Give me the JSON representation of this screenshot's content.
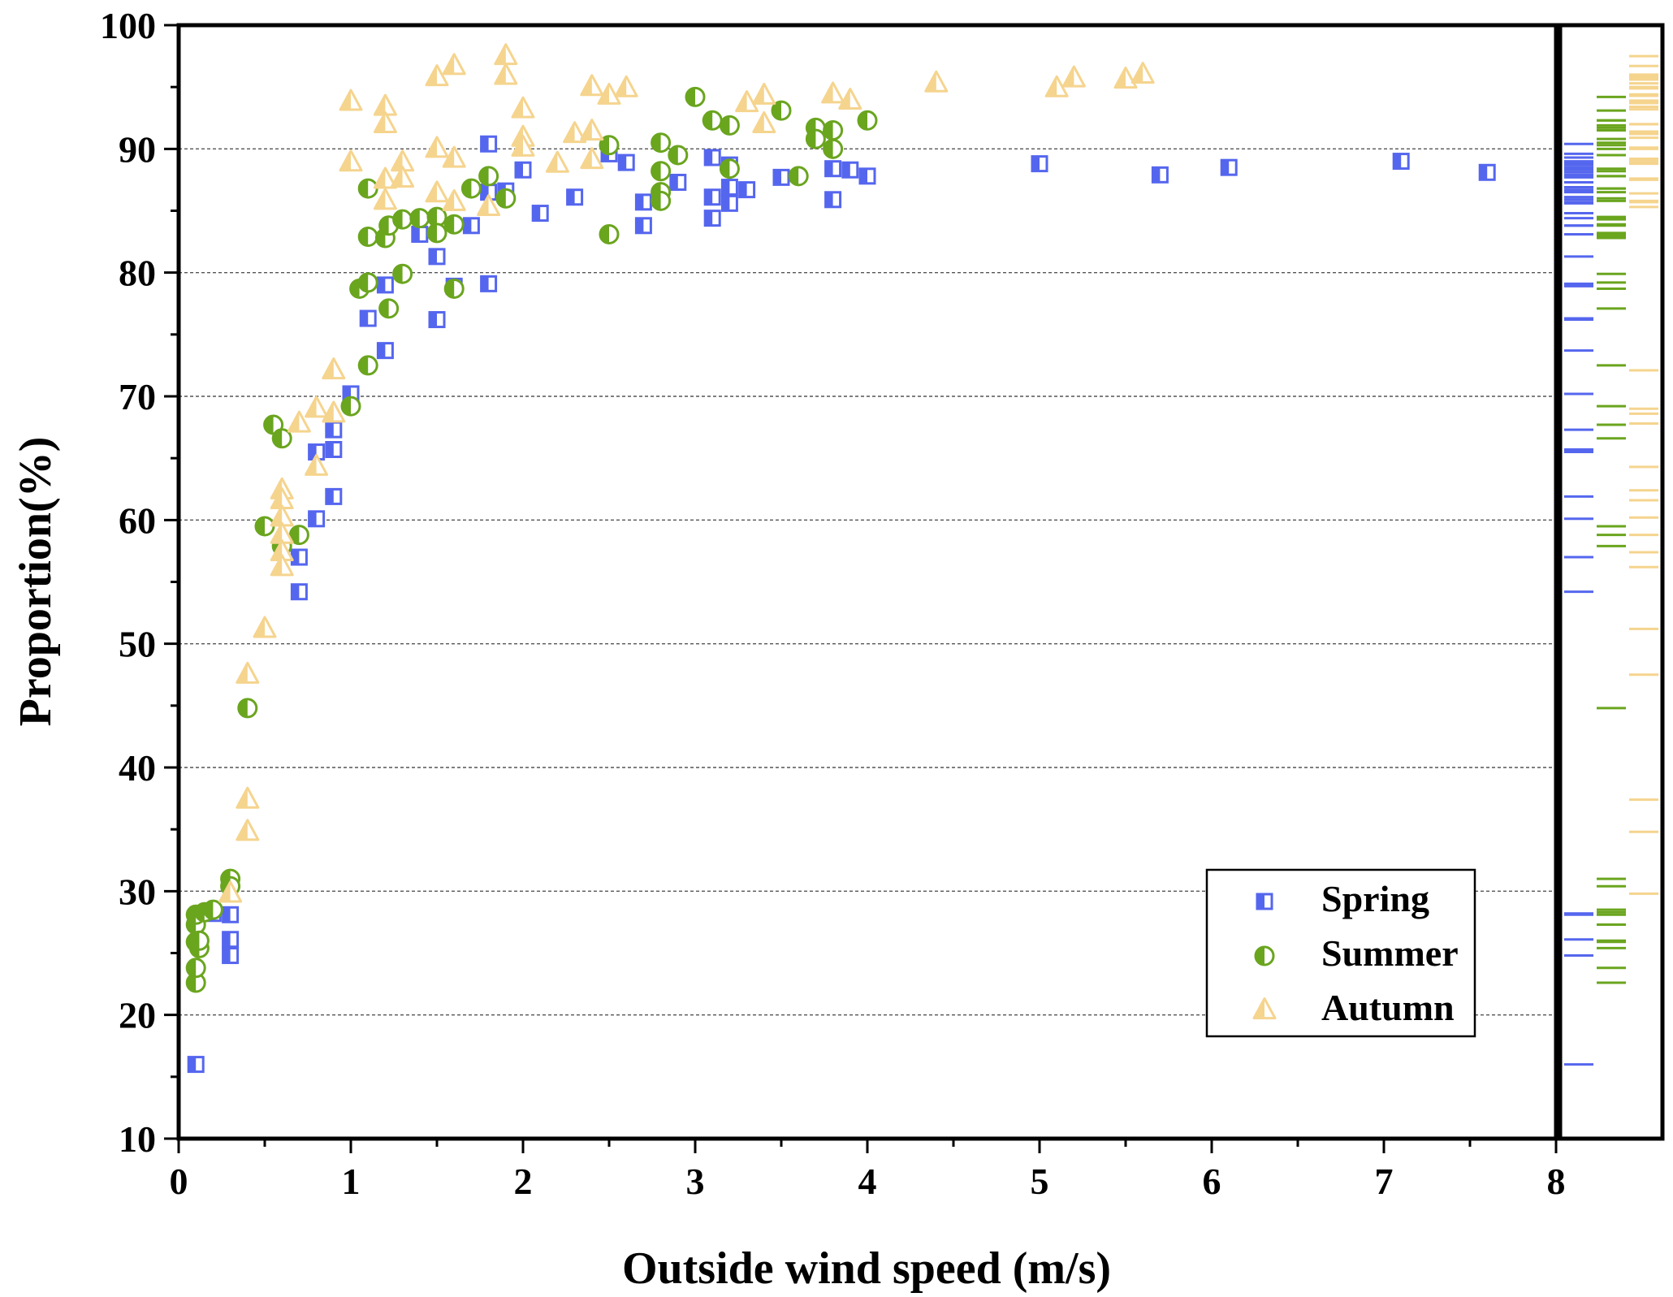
{
  "chart_data": {
    "type": "scatter",
    "title": "",
    "xlabel": "Outside wind speed (m/s)",
    "ylabel": "Proportion(%)",
    "xlim": [
      0,
      8
    ],
    "ylim": [
      10,
      100
    ],
    "xticks": [
      0,
      1,
      2,
      3,
      4,
      5,
      6,
      7,
      8
    ],
    "yticks": [
      10,
      20,
      30,
      40,
      50,
      60,
      70,
      80,
      90,
      100
    ],
    "grid": "horizontal dashed at y = 20..90",
    "legend_position": "bottom-right",
    "marginal_rug": "right side, one column per series",
    "series": [
      {
        "name": "Spring",
        "marker": "half-filled square",
        "color": "#5566ee",
        "points": [
          [
            0.1,
            16
          ],
          [
            0.2,
            28.2
          ],
          [
            0.3,
            28.1
          ],
          [
            0.3,
            26.1
          ],
          [
            0.3,
            24.8
          ],
          [
            0.7,
            57
          ],
          [
            0.7,
            54.2
          ],
          [
            0.8,
            65.5
          ],
          [
            0.8,
            60.1
          ],
          [
            0.9,
            67.3
          ],
          [
            0.9,
            65.7
          ],
          [
            0.9,
            61.9
          ],
          [
            1.0,
            70.2
          ],
          [
            1.1,
            76.3
          ],
          [
            1.2,
            79
          ],
          [
            1.2,
            73.7
          ],
          [
            1.4,
            83.1
          ],
          [
            1.5,
            81.3
          ],
          [
            1.5,
            76.2
          ],
          [
            1.6,
            78.9
          ],
          [
            1.7,
            83.8
          ],
          [
            1.8,
            90.4
          ],
          [
            1.8,
            86.5
          ],
          [
            1.8,
            79.1
          ],
          [
            1.9,
            86.6
          ],
          [
            2.0,
            88.3
          ],
          [
            2.1,
            84.8
          ],
          [
            2.3,
            86.1
          ],
          [
            2.5,
            89.6
          ],
          [
            2.6,
            88.9
          ],
          [
            2.7,
            85.7
          ],
          [
            2.7,
            83.8
          ],
          [
            2.9,
            87.3
          ],
          [
            3.1,
            89.3
          ],
          [
            3.1,
            86.1
          ],
          [
            3.1,
            84.4
          ],
          [
            3.2,
            88.7
          ],
          [
            3.2,
            86.9
          ],
          [
            3.2,
            85.6
          ],
          [
            3.3,
            86.7
          ],
          [
            3.5,
            87.7
          ],
          [
            3.8,
            88.4
          ],
          [
            3.8,
            85.9
          ],
          [
            3.9,
            88.3
          ],
          [
            4.0,
            87.8
          ],
          [
            5.0,
            88.8
          ],
          [
            5.7,
            87.9
          ],
          [
            6.1,
            88.5
          ],
          [
            7.1,
            89.0
          ],
          [
            7.6,
            88.1
          ]
        ]
      },
      {
        "name": "Summer",
        "marker": "half-filled circle",
        "color": "#6aa51e",
        "points": [
          [
            0.1,
            22.6
          ],
          [
            0.1,
            23.8
          ],
          [
            0.1,
            25.9
          ],
          [
            0.1,
            27.3
          ],
          [
            0.1,
            28.1
          ],
          [
            0.12,
            25.4
          ],
          [
            0.12,
            26.0
          ],
          [
            0.15,
            28.3
          ],
          [
            0.2,
            28.5
          ],
          [
            0.3,
            31.0
          ],
          [
            0.3,
            30.4
          ],
          [
            0.4,
            44.8
          ],
          [
            0.5,
            59.5
          ],
          [
            0.55,
            67.7
          ],
          [
            0.6,
            66.6
          ],
          [
            0.6,
            57.9
          ],
          [
            0.7,
            58.8
          ],
          [
            1.0,
            69.2
          ],
          [
            1.05,
            78.7
          ],
          [
            1.1,
            86.8
          ],
          [
            1.1,
            82.9
          ],
          [
            1.1,
            79.2
          ],
          [
            1.1,
            72.5
          ],
          [
            1.2,
            82.8
          ],
          [
            1.22,
            83.8
          ],
          [
            1.22,
            77.1
          ],
          [
            1.3,
            84.3
          ],
          [
            1.3,
            79.9
          ],
          [
            1.4,
            84.4
          ],
          [
            1.5,
            84.5
          ],
          [
            1.5,
            83.2
          ],
          [
            1.6,
            83.9
          ],
          [
            1.6,
            78.7
          ],
          [
            1.7,
            86.8
          ],
          [
            1.8,
            87.8
          ],
          [
            1.9,
            86.0
          ],
          [
            2.5,
            90.3
          ],
          [
            2.5,
            83.1
          ],
          [
            2.8,
            90.5
          ],
          [
            2.8,
            88.2
          ],
          [
            2.8,
            86.5
          ],
          [
            2.8,
            85.8
          ],
          [
            2.9,
            89.5
          ],
          [
            3.0,
            94.2
          ],
          [
            3.1,
            92.3
          ],
          [
            3.2,
            91.9
          ],
          [
            3.2,
            88.4
          ],
          [
            3.5,
            93.1
          ],
          [
            3.6,
            87.8
          ],
          [
            3.7,
            91.7
          ],
          [
            3.7,
            90.8
          ],
          [
            3.8,
            91.5
          ],
          [
            3.8,
            90.0
          ],
          [
            4.0,
            92.3
          ]
        ]
      },
      {
        "name": "Autumn",
        "marker": "half-filled triangle",
        "color": "#f5d48e",
        "points": [
          [
            0.3,
            29.8
          ],
          [
            0.4,
            47.5
          ],
          [
            0.4,
            37.4
          ],
          [
            0.4,
            34.8
          ],
          [
            0.5,
            51.2
          ],
          [
            0.6,
            62.4
          ],
          [
            0.6,
            61.6
          ],
          [
            0.6,
            60.2
          ],
          [
            0.6,
            58.8
          ],
          [
            0.6,
            57.4
          ],
          [
            0.6,
            56.2
          ],
          [
            0.7,
            67.8
          ],
          [
            0.8,
            69.0
          ],
          [
            0.8,
            64.3
          ],
          [
            0.9,
            72.1
          ],
          [
            0.9,
            68.6
          ],
          [
            1.0,
            93.8
          ],
          [
            1.0,
            88.9
          ],
          [
            1.2,
            93.4
          ],
          [
            1.2,
            92.0
          ],
          [
            1.2,
            87.5
          ],
          [
            1.2,
            85.8
          ],
          [
            1.3,
            88.9
          ],
          [
            1.3,
            87.6
          ],
          [
            1.5,
            95.8
          ],
          [
            1.5,
            90.0
          ],
          [
            1.5,
            86.4
          ],
          [
            1.6,
            96.7
          ],
          [
            1.6,
            89.2
          ],
          [
            1.6,
            85.7
          ],
          [
            1.8,
            85.3
          ],
          [
            1.9,
            97.5
          ],
          [
            1.9,
            95.9
          ],
          [
            2.0,
            93.2
          ],
          [
            2.0,
            90.9
          ],
          [
            2.0,
            90.1
          ],
          [
            2.2,
            88.8
          ],
          [
            2.3,
            91.2
          ],
          [
            2.4,
            95.0
          ],
          [
            2.4,
            91.4
          ],
          [
            2.4,
            89.1
          ],
          [
            2.5,
            94.3
          ],
          [
            2.6,
            94.9
          ],
          [
            3.3,
            93.7
          ],
          [
            3.4,
            92.0
          ],
          [
            3.4,
            94.3
          ],
          [
            3.8,
            94.4
          ],
          [
            3.9,
            93.9
          ],
          [
            4.4,
            95.3
          ],
          [
            5.1,
            94.9
          ],
          [
            5.2,
            95.7
          ],
          [
            5.5,
            95.6
          ],
          [
            5.6,
            96.0
          ]
        ]
      }
    ]
  }
}
